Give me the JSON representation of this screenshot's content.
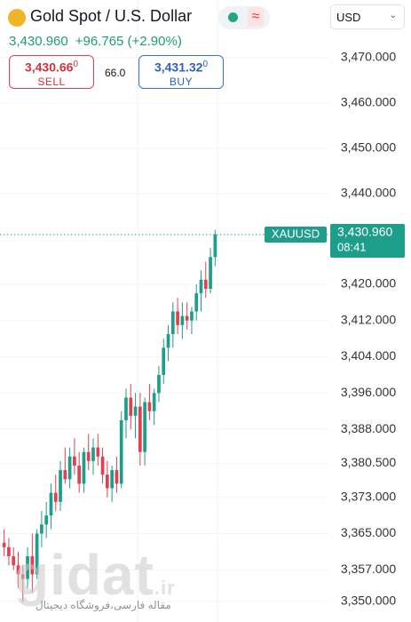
{
  "header": {
    "title": "Gold Spot / U.S. Dollar",
    "change": "+96.765 (+2.90%)",
    "sell": {
      "price": "3,430.66",
      "fraction": "0",
      "label": "SELL"
    },
    "spread": "66.0",
    "buy": {
      "price": "3,431.32",
      "fraction": "0",
      "label": "BUY"
    },
    "currency": "USD"
  },
  "chart_data": {
    "type": "candlestick",
    "symbol": "XAUUSD",
    "last": {
      "value": 3430.96,
      "label": "3,430.960"
    },
    "time": "08:41",
    "ylim": [
      3345.5,
      3482.7
    ],
    "yticks": [
      {
        "value": 3470,
        "label": "3,470.000"
      },
      {
        "value": 3460,
        "label": "3,460.000"
      },
      {
        "value": 3450,
        "label": "3,450.000"
      },
      {
        "value": 3440,
        "label": "3,440.000"
      },
      {
        "value": 3420,
        "label": "3,420.000"
      },
      {
        "value": 3412,
        "label": "3,412.000"
      },
      {
        "value": 3404,
        "label": "3,404.000"
      },
      {
        "value": 3396,
        "label": "3,396.000"
      },
      {
        "value": 3388,
        "label": "3,388.000"
      },
      {
        "value": 3380.5,
        "label": "3,380.500"
      },
      {
        "value": 3373,
        "label": "3,373.000"
      },
      {
        "value": 3365,
        "label": "3,365.000"
      },
      {
        "value": 3357,
        "label": "3,357.000"
      },
      {
        "value": 3350,
        "label": "3,350.000"
      }
    ],
    "grid": true,
    "up_color": "#1d9e8a",
    "down_color": "#e2404d",
    "open": [
      3363,
      3362,
      3360,
      3358,
      3356,
      3355,
      3360,
      3356,
      3365,
      3367,
      3369,
      3374,
      3372,
      3379,
      3377,
      3382,
      3380,
      3376,
      3383,
      3381,
      3384,
      3382,
      3378,
      3375,
      3379,
      3376,
      3390,
      3395,
      3391,
      3393,
      3383,
      3394,
      3392,
      3396,
      3400,
      3406,
      3409,
      3414,
      3411,
      3413,
      3412,
      3414,
      3418,
      3421,
      3419,
      3426
    ],
    "high": [
      3366,
      3364,
      3362,
      3361,
      3358,
      3362,
      3365,
      3366,
      3370,
      3372,
      3376,
      3378,
      3381,
      3384,
      3384,
      3386,
      3383,
      3384,
      3387,
      3386,
      3387,
      3384,
      3381,
      3380,
      3382,
      3392,
      3397,
      3398,
      3396,
      3396,
      3395,
      3398,
      3397,
      3402,
      3408,
      3411,
      3416,
      3417,
      3416,
      3416,
      3415,
      3420,
      3423,
      3425,
      3428,
      3432
    ],
    "low": [
      3360,
      3358,
      3357,
      3353,
      3350,
      3353,
      3352,
      3355,
      3362,
      3364,
      3366,
      3370,
      3370,
      3376,
      3375,
      3378,
      3374,
      3374,
      3379,
      3378,
      3380,
      3376,
      3373,
      3372,
      3374,
      3375,
      3386,
      3388,
      3386,
      3380,
      3380,
      3390,
      3389,
      3394,
      3398,
      3403,
      3406,
      3409,
      3408,
      3410,
      3409,
      3412,
      3414,
      3417,
      3418,
      3424
    ],
    "close": [
      3362,
      3360,
      3358,
      3356,
      3355,
      3360,
      3356,
      3365,
      3367,
      3369,
      3374,
      3372,
      3379,
      3377,
      3382,
      3380,
      3376,
      3383,
      3381,
      3384,
      3382,
      3378,
      3375,
      3379,
      3376,
      3390,
      3395,
      3391,
      3393,
      3383,
      3394,
      3392,
      3396,
      3400,
      3406,
      3409,
      3414,
      3411,
      3413,
      3412,
      3414,
      3418,
      3421,
      3419,
      3426,
      3430.96
    ]
  },
  "watermark": {
    "brand": "gidat",
    "domain": ".ir",
    "tagline": "مقاله فارسی،فروشگاه دیجیتال"
  }
}
